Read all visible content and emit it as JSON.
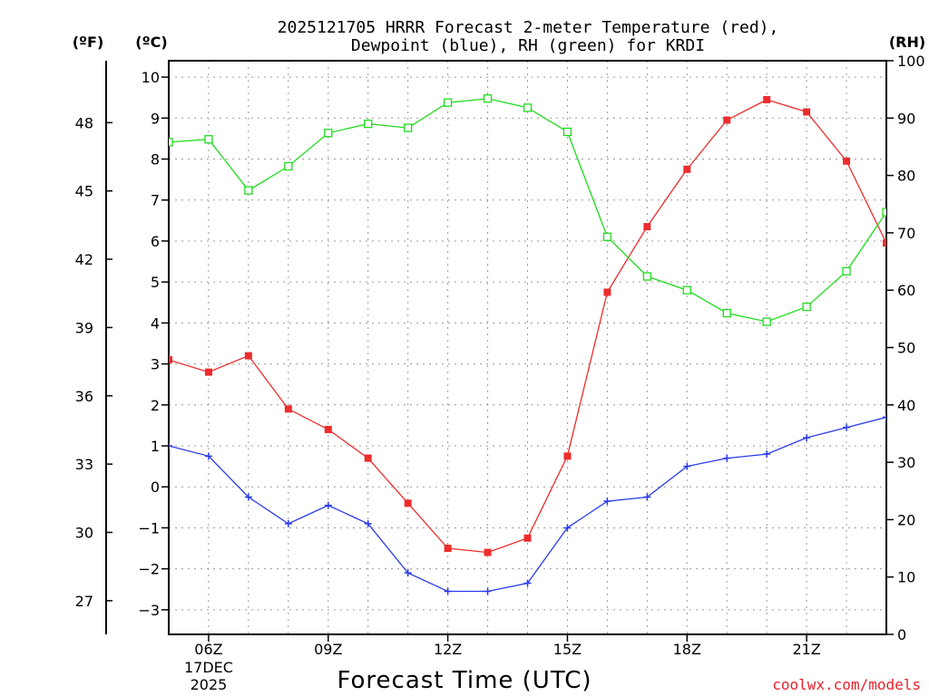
{
  "chart_data": {
    "type": "line",
    "title_line1": "2025121705 HRRR Forecast 2-meter Temperature (red),",
    "title_line2": "Dewpoint (blue), RH (green) for KRDI",
    "xlabel": "Forecast Time (UTC)",
    "left_outer_label": "(ºF)",
    "left_inner_label": "(ºC)",
    "right_label": "(RH)",
    "credit": "coolwx.com/models",
    "x": [
      5,
      6,
      7,
      8,
      9,
      10,
      11,
      12,
      13,
      14,
      15,
      16,
      17,
      18,
      19,
      20,
      21,
      22,
      23
    ],
    "xlim": [
      5,
      23
    ],
    "x_ticks": [
      {
        "x": 6,
        "label": "06Z",
        "sub1": "17DEC",
        "sub2": "2025"
      },
      {
        "x": 9,
        "label": "09Z"
      },
      {
        "x": 12,
        "label": "12Z"
      },
      {
        "x": 15,
        "label": "15Z"
      },
      {
        "x": 18,
        "label": "18Z"
      },
      {
        "x": 21,
        "label": "21Z"
      }
    ],
    "celsius_axis": {
      "ylim": [
        -3.6,
        10.4
      ],
      "ticks": [
        -3,
        -2,
        -1,
        0,
        1,
        2,
        3,
        4,
        5,
        6,
        7,
        8,
        9,
        10
      ]
    },
    "fahrenheit_axis": {
      "ticks": [
        27,
        30,
        33,
        36,
        39,
        42,
        45,
        48
      ]
    },
    "rh_axis": {
      "ylim": [
        0,
        100
      ],
      "ticks": [
        0,
        10,
        20,
        30,
        40,
        50,
        60,
        70,
        80,
        90,
        100
      ]
    },
    "grid": true,
    "series": [
      {
        "key": "temperature",
        "axis": "celsius",
        "color": "#ee2c2c",
        "marker": "filled-square",
        "values": [
          3.1,
          2.8,
          3.2,
          1.9,
          1.4,
          0.7,
          -0.4,
          -1.5,
          -1.6,
          -1.25,
          0.75,
          4.75,
          6.35,
          7.75,
          8.95,
          9.45,
          9.15,
          7.95,
          5.95
        ]
      },
      {
        "key": "dewpoint",
        "axis": "celsius",
        "color": "#2a3bea",
        "marker": "plus",
        "values": [
          1.0,
          0.75,
          -0.25,
          -0.9,
          -0.45,
          -0.9,
          -2.1,
          -2.55,
          -2.55,
          -2.35,
          -1.0,
          -0.35,
          -0.25,
          0.5,
          0.7,
          0.8,
          1.2,
          1.45,
          1.7
        ]
      },
      {
        "key": "rh",
        "axis": "rh",
        "color": "#1edc1e",
        "marker": "open-square",
        "values": [
          85.8,
          86.3,
          77.4,
          81.6,
          87.4,
          89.0,
          88.3,
          92.7,
          93.4,
          91.8,
          87.6,
          69.3,
          62.4,
          60.0,
          56.0,
          54.5,
          57.1,
          63.3,
          73.6
        ]
      }
    ]
  }
}
